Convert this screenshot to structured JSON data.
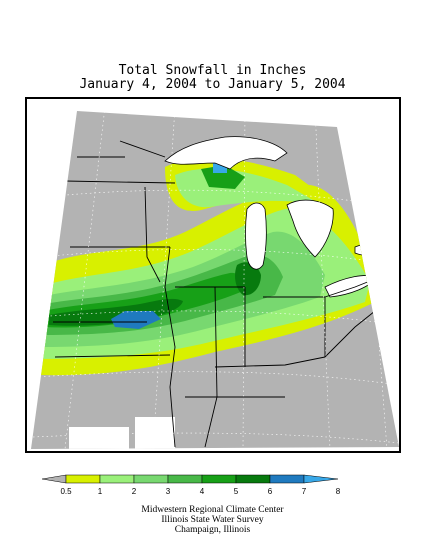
{
  "title": {
    "line1": "Total Snowfall in Inches",
    "line2": "January 4, 2004 to January 5, 2004"
  },
  "legend": {
    "ticks": [
      "0.5",
      "1",
      "2",
      "3",
      "4",
      "5",
      "6",
      "7",
      "8"
    ],
    "colors": [
      "#b3b3b3",
      "#d8f000",
      "#9af07a",
      "#78d870",
      "#48b848",
      "#17a017",
      "#077a0e",
      "#1f7abf",
      "#38a8e8"
    ]
  },
  "credits": {
    "line1": "Midwestern Regional Climate Center",
    "line2": "Illinois State Water Survey",
    "line3": "Champaign, Illinois"
  },
  "colors": {
    "lake": "#ffffff",
    "no_data": "#ffffff",
    "border": "#000000"
  }
}
